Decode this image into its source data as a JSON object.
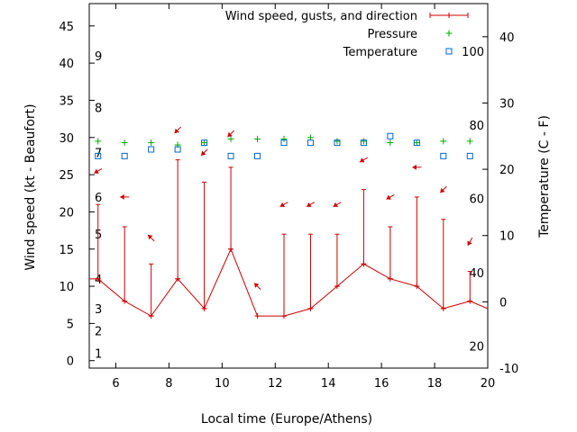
{
  "chart_data": {
    "type": "line",
    "xlabel": "Local time (Europe/Athens)",
    "ylabel_left": "Wind speed (kt - Beaufort)",
    "ylabel_right": "Temperature (C - F)",
    "x_range": [
      5,
      20
    ],
    "y_left_range": [
      -1,
      48
    ],
    "y_right_range": [
      -10,
      45
    ],
    "x_ticks": [
      6,
      8,
      10,
      12,
      14,
      16,
      18,
      20
    ],
    "y_left_ticks": [
      0,
      5,
      10,
      15,
      20,
      25,
      30,
      35,
      40,
      45
    ],
    "y_right_ticks": [
      -10,
      0,
      10,
      20,
      30,
      40
    ],
    "beaufort_labels": [
      {
        "value": "1",
        "y": 1
      },
      {
        "value": "2",
        "y": 4
      },
      {
        "value": "3",
        "y": 7
      },
      {
        "value": "4",
        "y": 11
      },
      {
        "value": "5",
        "y": 17
      },
      {
        "value": "6",
        "y": 22
      },
      {
        "value": "7",
        "y": 28
      },
      {
        "value": "8",
        "y": 34
      },
      {
        "value": "9",
        "y": 41
      }
    ],
    "fahrenheit_labels": [
      {
        "value": "20",
        "temp_c": -6.7
      },
      {
        "value": "40",
        "temp_c": 4.4
      },
      {
        "value": "60",
        "temp_c": 15.6
      },
      {
        "value": "80",
        "temp_c": 26.7
      },
      {
        "value": "100",
        "temp_c": 37.8
      }
    ],
    "legend": [
      {
        "label": "Wind speed, gusts, and direction",
        "color": "#cc0000",
        "marker": "errorbar"
      },
      {
        "label": "Pressure",
        "color": "#00aa00",
        "marker": "plus"
      },
      {
        "label": "Temperature",
        "color": "#0066cc",
        "marker": "square"
      }
    ],
    "series": [
      {
        "name": "Wind speed, gusts, and direction",
        "x": [
          5,
          5.33,
          6.33,
          7.33,
          8.33,
          9.33,
          10.33,
          11.33,
          12.33,
          13.33,
          14.33,
          15.33,
          16.33,
          17.33,
          18.33,
          19.33,
          20
        ],
        "speed": [
          11,
          11,
          8,
          6,
          11,
          7,
          15,
          6,
          6,
          7,
          10,
          13,
          11,
          10,
          7,
          8,
          7
        ],
        "gust": [
          null,
          21,
          18,
          13,
          27,
          24,
          26,
          null,
          17,
          17,
          17,
          23,
          18,
          22,
          19,
          12,
          null
        ]
      },
      {
        "name": "Pressure",
        "x": [
          5.33,
          6.33,
          7.33,
          8.33,
          9.33,
          10.33,
          11.33,
          12.33,
          13.33,
          14.33,
          15.33,
          16.33,
          17.33,
          18.33,
          19.33
        ],
        "values": [
          29.5,
          29.3,
          29.3,
          29,
          29.3,
          29.8,
          29.8,
          29.8,
          30,
          29.5,
          29.5,
          29.3,
          29.3,
          29.5,
          29.5
        ]
      },
      {
        "name": "Temperature",
        "x": [
          5.33,
          6.33,
          7.33,
          8.33,
          9.33,
          10.33,
          11.33,
          12.33,
          13.33,
          14.33,
          15.33,
          16.33,
          17.33,
          18.33,
          19.33
        ],
        "values": [
          22,
          22,
          23,
          23,
          24,
          22,
          22,
          24,
          24,
          24,
          24,
          25,
          24,
          22,
          22
        ]
      }
    ],
    "direction_arrows": [
      {
        "x": 5.33,
        "y": 25.5,
        "angle": 210
      },
      {
        "x": 6.33,
        "y": 22,
        "angle": 180
      },
      {
        "x": 7.33,
        "y": 16.5,
        "angle": 135
      },
      {
        "x": 8.33,
        "y": 31,
        "angle": 225
      },
      {
        "x": 9.33,
        "y": 28,
        "angle": 225
      },
      {
        "x": 10.33,
        "y": 30.5,
        "angle": 225
      },
      {
        "x": 11.33,
        "y": 10,
        "angle": 135
      },
      {
        "x": 12.33,
        "y": 21,
        "angle": 210
      },
      {
        "x": 13.33,
        "y": 21,
        "angle": 210
      },
      {
        "x": 14.33,
        "y": 21,
        "angle": 210
      },
      {
        "x": 15.33,
        "y": 27,
        "angle": 210
      },
      {
        "x": 16.33,
        "y": 22,
        "angle": 210
      },
      {
        "x": 17.33,
        "y": 26,
        "angle": 180
      },
      {
        "x": 18.33,
        "y": 23,
        "angle": 225
      },
      {
        "x": 19.33,
        "y": 16,
        "angle": 240
      }
    ]
  }
}
